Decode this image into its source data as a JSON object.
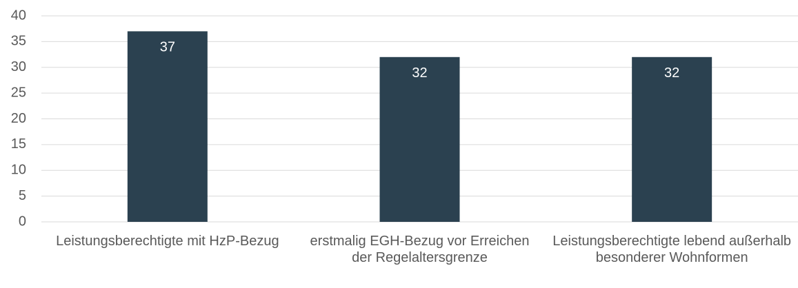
{
  "chart_data": {
    "type": "bar",
    "categories": [
      "Leistungsberechtigte mit HzP-Bezug",
      "erstmalig EGH-Bezug vor Erreichen der Regelaltersgrenze",
      "Leistungsberechtigte lebend außerhalb besonderer Wohnformen"
    ],
    "values": [
      37,
      32,
      32
    ],
    "color": "#2b4150",
    "ylim": [
      0,
      40
    ],
    "yticks": [
      0,
      5,
      10,
      15,
      20,
      25,
      30,
      35,
      40
    ],
    "grid": true
  }
}
